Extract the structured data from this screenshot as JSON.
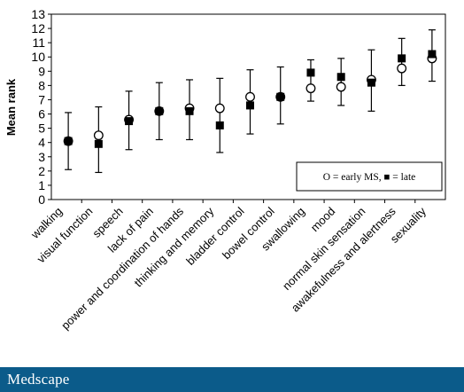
{
  "chart_data": {
    "type": "scatter",
    "title": "",
    "xlabel": "",
    "ylabel": "Mean rank",
    "ylim": [
      0,
      13
    ],
    "yticks": [
      0,
      1,
      2,
      3,
      4,
      5,
      6,
      7,
      8,
      9,
      10,
      11,
      12,
      13
    ],
    "grid": false,
    "legend_position": "bottom-right",
    "legend_text": "O = early MS, ■ = late",
    "categories": [
      "walking",
      "visual function",
      "speech",
      "lack of pain",
      "power and coordination of hands",
      "thinking and memory",
      "bladder control",
      "bowel control",
      "swallowing",
      "mood",
      "normal skin sensation",
      "awakefulness and alertness",
      "sexuality"
    ],
    "series": [
      {
        "marker": "open-circle",
        "values": [
          4.1,
          4.5,
          5.6,
          6.2,
          6.4,
          6.4,
          7.2,
          7.2,
          7.8,
          7.9,
          8.4,
          9.2,
          9.9
        ],
        "error_low": [
          2.1,
          1.9,
          3.5,
          4.2,
          4.2,
          3.3,
          4.6,
          5.3,
          6.9,
          6.6,
          6.2,
          8.0,
          8.3
        ],
        "error_high": [
          6.1,
          6.5,
          7.6,
          8.2,
          8.4,
          8.5,
          9.1,
          9.3,
          9.8,
          9.9,
          10.5,
          11.3,
          11.9
        ]
      },
      {
        "marker": "filled-square",
        "values": [
          4.1,
          3.9,
          5.5,
          6.2,
          6.2,
          5.2,
          6.6,
          7.2,
          8.9,
          8.6,
          8.2,
          9.9,
          10.2
        ]
      }
    ]
  },
  "branding": {
    "name": "Medscape"
  }
}
